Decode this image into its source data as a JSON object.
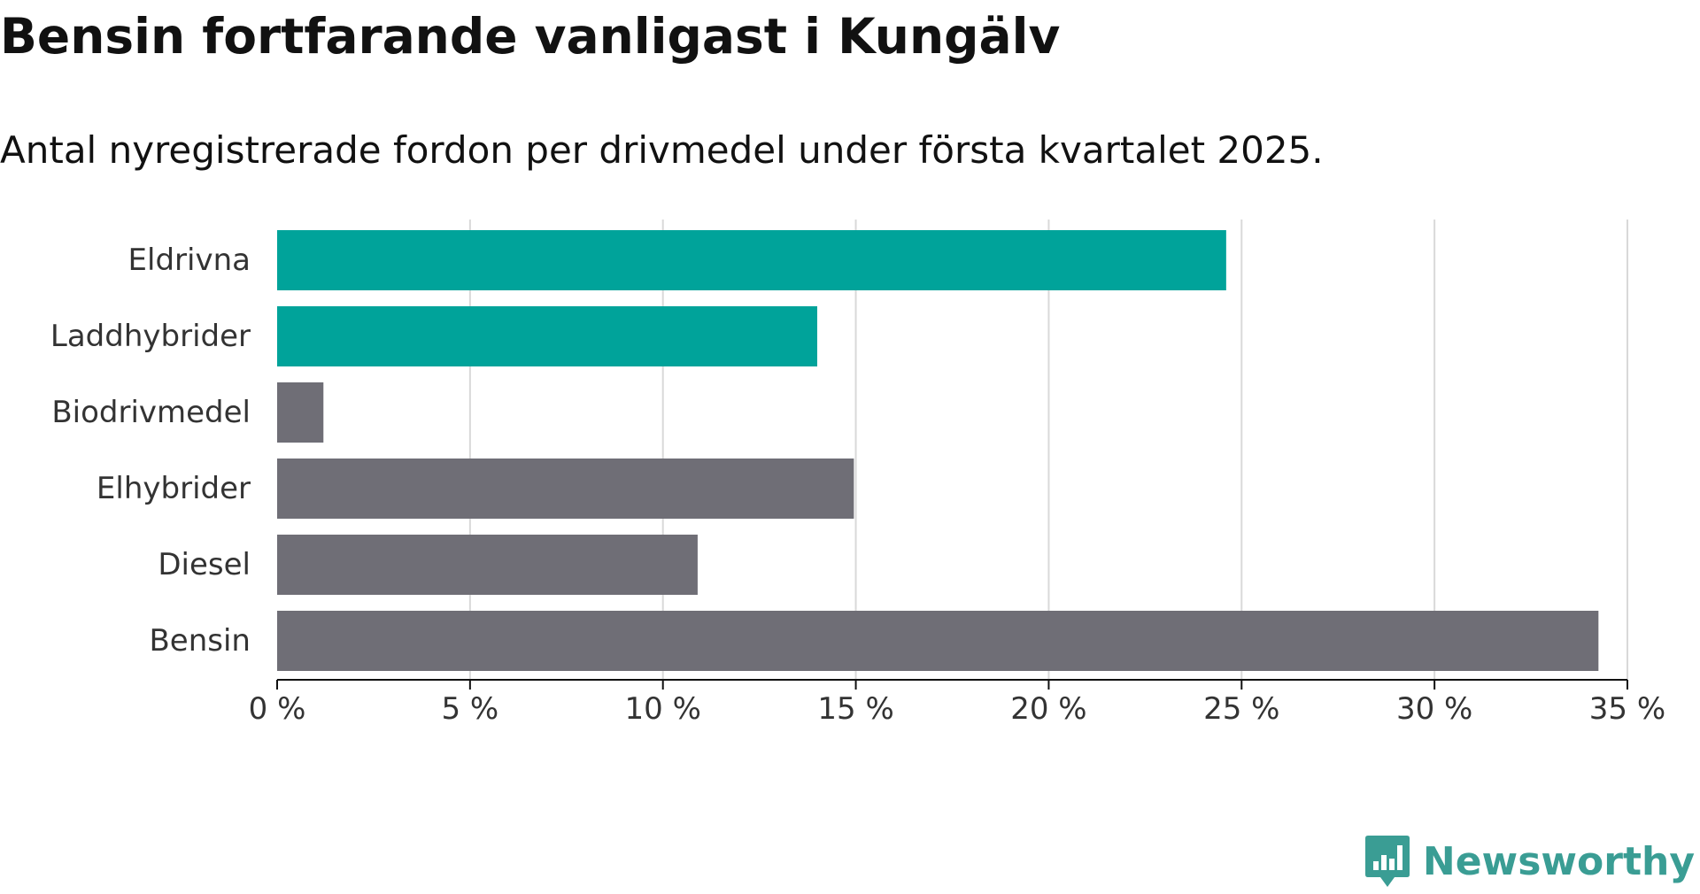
{
  "title": "Bensin fortfarande vanligast i Kungälv",
  "subtitle": "Antal nyregistrerade fordon per drivmedel under första kvartalet 2025.",
  "brand": {
    "name": "Newsworthy",
    "icon": "newsworthy-logo-icon",
    "color": "#3a9d94"
  },
  "chart_data": {
    "type": "bar",
    "orientation": "horizontal",
    "categories": [
      "Eldrivna",
      "Laddhybrider",
      "Biodrivmedel",
      "Elhybrider",
      "Diesel",
      "Bensin"
    ],
    "values": [
      24.6,
      14.0,
      1.2,
      14.95,
      10.9,
      34.25
    ],
    "colors": [
      "#00a39a",
      "#00a39a",
      "#6f6e76",
      "#6f6e76",
      "#6f6e76",
      "#6f6e76"
    ],
    "xlim": [
      0,
      35
    ],
    "xticks": [
      0,
      5,
      10,
      15,
      20,
      25,
      30,
      35
    ],
    "xtick_labels": [
      "0 %",
      "5 %",
      "10 %",
      "15 %",
      "20 %",
      "25 %",
      "30 %",
      "35 %"
    ],
    "grid": true,
    "legend": "none"
  }
}
